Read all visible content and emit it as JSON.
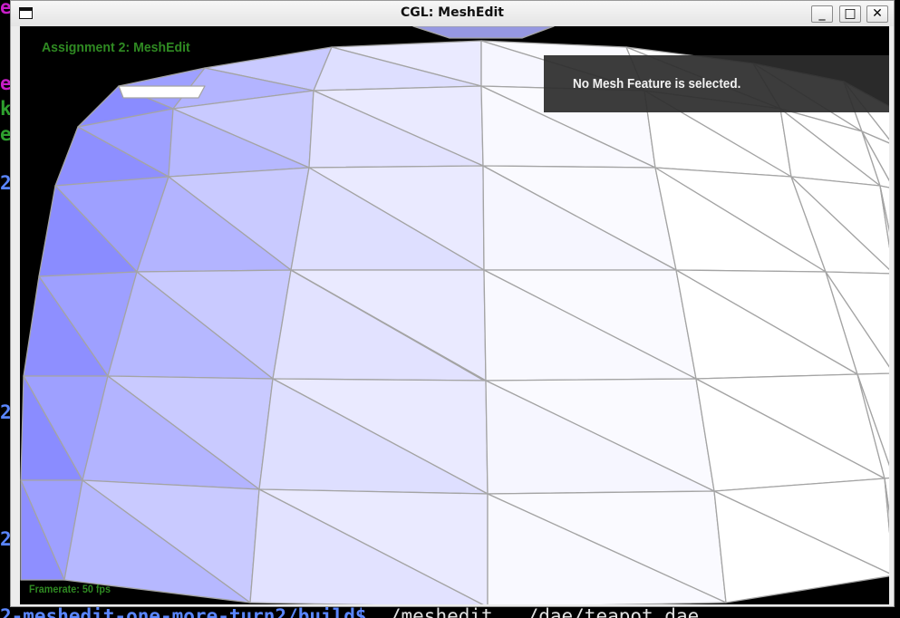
{
  "terminal": {
    "fragments": [
      {
        "text": "e",
        "color": "#c81ec8"
      },
      {
        "text": "e",
        "color": "#c81ec8"
      },
      {
        "text": "k",
        "color": "#2ea02e"
      },
      {
        "text": "e",
        "color": "#2ea02e"
      },
      {
        "text": "2",
        "color": "#5a86ff"
      },
      {
        "text": "2",
        "color": "#5a86ff"
      },
      {
        "text": "2",
        "color": "#5a86ff"
      }
    ],
    "bottom_path": "2-meshedit-one-more-turn2/build$ ",
    "bottom_command": "./meshedit ../dae/teapot.dae"
  },
  "window": {
    "title": "CGL: MeshEdit",
    "minimize_label": "_",
    "maximize_label": "□",
    "close_label": "✕",
    "system_menu_icon": "window-menu-icon"
  },
  "viewport": {
    "app_title": "Assignment 2: MeshEdit",
    "info_panel_text": "No Mesh Feature is selected.",
    "framerate": "Framerate: 50 fps",
    "mesh_edge_color": "#a4a4a4",
    "shading_light": "#ffffff",
    "shading_dark": "#8a8cff"
  }
}
